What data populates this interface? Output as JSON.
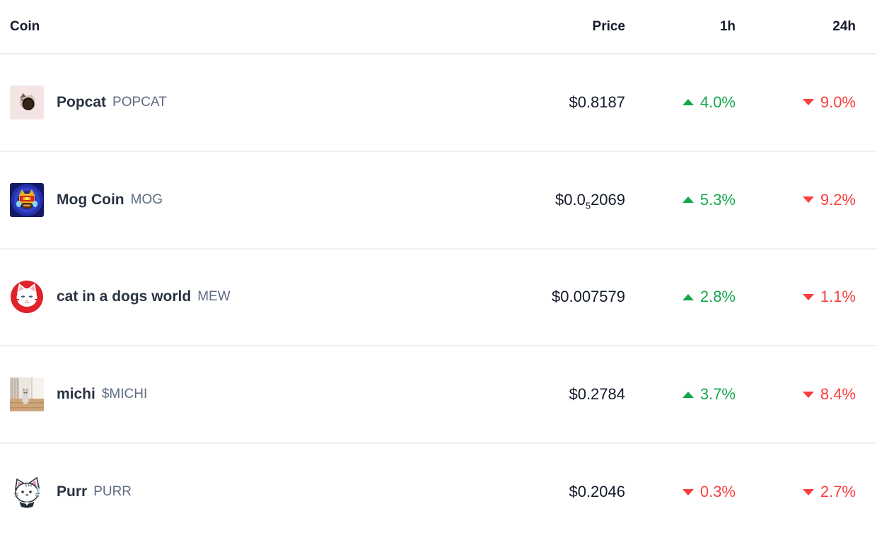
{
  "colors": {
    "positive": "#14a74c",
    "negative": "#fa3d3d"
  },
  "table": {
    "columns": {
      "coin": "Coin",
      "price": "Price",
      "h1": "1h",
      "h24": "24h"
    },
    "rows": [
      {
        "icon": "popcat-icon",
        "name": "Popcat",
        "symbol": "POPCAT",
        "price": "$0.8187",
        "h1": {
          "value": "4.0%",
          "direction": "up"
        },
        "h24": {
          "value": "9.0%",
          "direction": "down"
        }
      },
      {
        "icon": "mog-icon",
        "name": "Mog Coin",
        "symbol": "MOG",
        "price_prefix": "$0.0",
        "price_sub": "5",
        "price_suffix": "2069",
        "h1": {
          "value": "5.3%",
          "direction": "up"
        },
        "h24": {
          "value": "9.2%",
          "direction": "down"
        }
      },
      {
        "icon": "mew-icon",
        "name": "cat in a dogs world",
        "symbol": "MEW",
        "price": "$0.007579",
        "h1": {
          "value": "2.8%",
          "direction": "up"
        },
        "h24": {
          "value": "1.1%",
          "direction": "down"
        }
      },
      {
        "icon": "michi-icon",
        "name": "michi",
        "symbol": "$MICHI",
        "price": "$0.2784",
        "h1": {
          "value": "3.7%",
          "direction": "up"
        },
        "h24": {
          "value": "8.4%",
          "direction": "down"
        }
      },
      {
        "icon": "purr-icon",
        "name": "Purr",
        "symbol": "PURR",
        "price": "$0.2046",
        "h1": {
          "value": "0.3%",
          "direction": "down"
        },
        "h24": {
          "value": "2.7%",
          "direction": "down"
        }
      }
    ]
  }
}
